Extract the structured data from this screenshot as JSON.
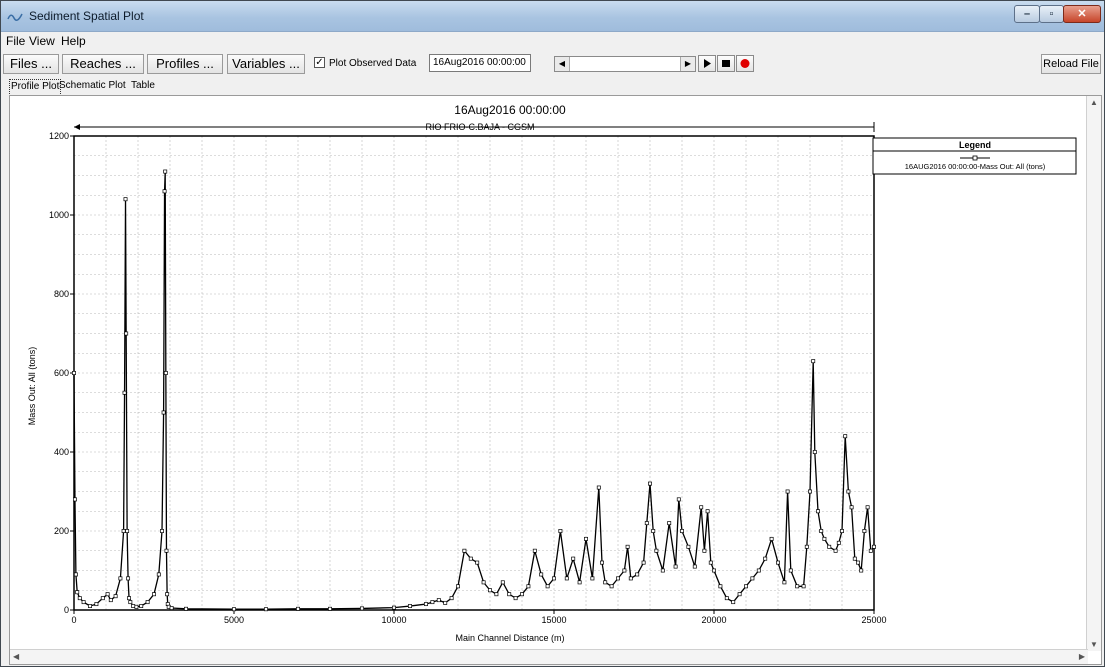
{
  "window": {
    "title": "Sediment Spatial Plot"
  },
  "menu": {
    "file": "File",
    "view": "View",
    "help": "Help"
  },
  "toolbar": {
    "files": "Files ...",
    "reaches": "Reaches ...",
    "profiles": "Profiles ...",
    "variables": "Variables ...",
    "plot_observed": "Plot Observed Data",
    "plot_observed_checked": true,
    "date": "16Aug2016 00:00:00",
    "reload": "Reload File"
  },
  "tabs": [
    "Profile Plot",
    "Schematic Plot",
    "Table"
  ],
  "chart_data": {
    "type": "line",
    "title": "16Aug2016 00:00:00",
    "reach_label": "RIO FRIO-C.BAJA - CGSM",
    "xlabel": "Main Channel Distance (m)",
    "ylabel": "Mass Out: All (tons)",
    "xlim": [
      0,
      25000
    ],
    "ylim": [
      0,
      1200
    ],
    "xticks": [
      0,
      5000,
      10000,
      15000,
      20000,
      25000
    ],
    "yticks": [
      0,
      200,
      400,
      600,
      800,
      1000,
      1200
    ],
    "grid": true,
    "legend": {
      "title": "Legend",
      "placement": "right",
      "entries": [
        "16AUG2016 00:00:00-Mass Out: All (tons)"
      ]
    },
    "series": [
      {
        "name": "16AUG2016 00:00:00-Mass Out: All (tons)",
        "x": [
          0,
          30,
          60,
          100,
          180,
          300,
          500,
          700,
          900,
          1050,
          1150,
          1300,
          1450,
          1550,
          1580,
          1610,
          1630,
          1660,
          1690,
          1720,
          1760,
          1850,
          1950,
          2100,
          2300,
          2500,
          2650,
          2750,
          2800,
          2830,
          2850,
          2870,
          2890,
          2910,
          2930,
          2960,
          3050,
          3500,
          5000,
          6000,
          7000,
          8000,
          9000,
          10000,
          10500,
          11000,
          11200,
          11400,
          11600,
          11800,
          12000,
          12200,
          12400,
          12600,
          12800,
          13000,
          13200,
          13400,
          13600,
          13800,
          14000,
          14200,
          14400,
          14600,
          14800,
          15000,
          15200,
          15400,
          15600,
          15800,
          16000,
          16200,
          16400,
          16500,
          16600,
          16800,
          17000,
          17200,
          17300,
          17400,
          17600,
          17800,
          17900,
          18000,
          18100,
          18200,
          18400,
          18600,
          18800,
          18900,
          19000,
          19200,
          19400,
          19600,
          19700,
          19800,
          19900,
          20000,
          20200,
          20400,
          20600,
          20800,
          21000,
          21200,
          21400,
          21600,
          21800,
          22000,
          22200,
          22300,
          22400,
          22600,
          22800,
          22900,
          23000,
          23100,
          23150,
          23250,
          23350,
          23450,
          23600,
          23800,
          23900,
          24000,
          24100,
          24200,
          24300,
          24400,
          24500,
          24600,
          24700,
          24800,
          24900,
          25000
        ],
        "values": [
          600,
          280,
          90,
          45,
          30,
          20,
          10,
          15,
          30,
          40,
          25,
          35,
          80,
          200,
          550,
          1040,
          700,
          200,
          80,
          30,
          20,
          10,
          8,
          10,
          20,
          40,
          90,
          200,
          500,
          1060,
          1110,
          600,
          150,
          40,
          15,
          8,
          5,
          3,
          2,
          2,
          3,
          3,
          4,
          6,
          10,
          15,
          20,
          25,
          18,
          30,
          60,
          150,
          130,
          120,
          70,
          50,
          40,
          70,
          40,
          30,
          40,
          60,
          150,
          90,
          60,
          80,
          200,
          80,
          130,
          70,
          180,
          80,
          310,
          120,
          70,
          60,
          80,
          100,
          160,
          80,
          90,
          120,
          220,
          320,
          200,
          150,
          100,
          220,
          110,
          280,
          200,
          160,
          110,
          260,
          150,
          250,
          120,
          100,
          60,
          30,
          20,
          40,
          60,
          80,
          100,
          130,
          180,
          120,
          70,
          300,
          100,
          60,
          60,
          160,
          300,
          630,
          400,
          250,
          200,
          180,
          160,
          150,
          170,
          200,
          440,
          300,
          260,
          130,
          120,
          100,
          200,
          260,
          150,
          160
        ]
      }
    ]
  }
}
